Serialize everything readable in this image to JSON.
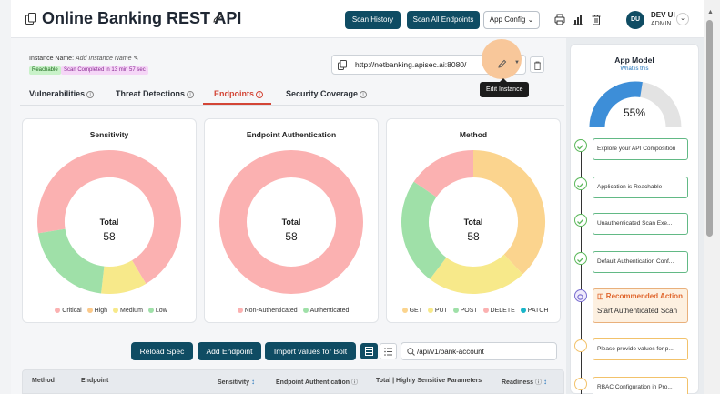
{
  "header": {
    "title": "Online Banking REST API",
    "scan_history": "Scan History",
    "scan_all": "Scan All Endpoints",
    "app_config": "App Config",
    "user_initials": "DU",
    "user_name": "DEV UI",
    "user_role": "ADMIN"
  },
  "instance": {
    "name_label": "Instance Name:",
    "name_placeholder": "Add Instance Name",
    "reachable": "Reachable",
    "scan_status": "Scan Completed in 13 min 57 sec",
    "url": "http://netbanking.apisec.ai:8080/",
    "tooltip": "Edit Instance"
  },
  "tabs": [
    {
      "label": "Vulnerabilities"
    },
    {
      "label": "Threat Detections"
    },
    {
      "label": "Endpoints"
    },
    {
      "label": "Security Coverage"
    }
  ],
  "charts": {
    "total_label": "Total",
    "sensitivity": {
      "title": "Sensitivity",
      "total": "58",
      "legend": [
        "Critical",
        "High",
        "Medium",
        "Low"
      ]
    },
    "auth": {
      "title": "Endpoint Authentication",
      "total": "58",
      "legend": [
        "Non-Authenticated",
        "Authenticated"
      ]
    },
    "method": {
      "title": "Method",
      "total": "58",
      "legend": [
        "GET",
        "PUT",
        "POST",
        "DELETE",
        "PATCH"
      ]
    }
  },
  "chart_data": [
    {
      "type": "pie",
      "title": "Sensitivity",
      "categories": [
        "Critical",
        "High",
        "Medium",
        "Low"
      ],
      "values": [
        40,
        0,
        6,
        12
      ],
      "colors": [
        "#fbb1b1",
        "#fbc98a",
        "#f7e98a",
        "#9fe0a8"
      ]
    },
    {
      "type": "pie",
      "title": "Endpoint Authentication",
      "categories": [
        "Non-Authenticated",
        "Authenticated"
      ],
      "values": [
        58,
        0
      ],
      "colors": [
        "#fbb1b1",
        "#9fe0a8"
      ]
    },
    {
      "type": "pie",
      "title": "Method",
      "categories": [
        "GET",
        "PUT",
        "POST",
        "DELETE",
        "PATCH"
      ],
      "values": [
        22,
        13,
        14,
        9,
        0
      ],
      "colors": [
        "#fbd48e",
        "#f7e98a",
        "#9fe0a8",
        "#fbb1b1",
        "#19b5c9"
      ]
    }
  ],
  "toolbar": {
    "reload": "Reload Spec",
    "add_endpoint": "Add Endpoint",
    "import": "Import values for Bolt",
    "search_value": "/api/v1/bank-account"
  },
  "table": {
    "columns": [
      "Method",
      "Endpoint",
      "Sensitivity",
      "Endpoint Authentication",
      "Total | Highly Sensitive Parameters",
      "Readiness"
    ]
  },
  "app_model": {
    "title": "App Model",
    "subtitle": "What is this",
    "percent": "55%",
    "percent_value": 55,
    "steps": [
      "Explore your API Composition",
      "Application is Reachable",
      "Unauthenticated Scan Exe...",
      "Default Authentication Conf...",
      "Please provide values for p...",
      "RBAC Configuration in Pro..."
    ],
    "reco_title": "Recommended Action",
    "reco_action": "Start Authenticated Scan"
  }
}
